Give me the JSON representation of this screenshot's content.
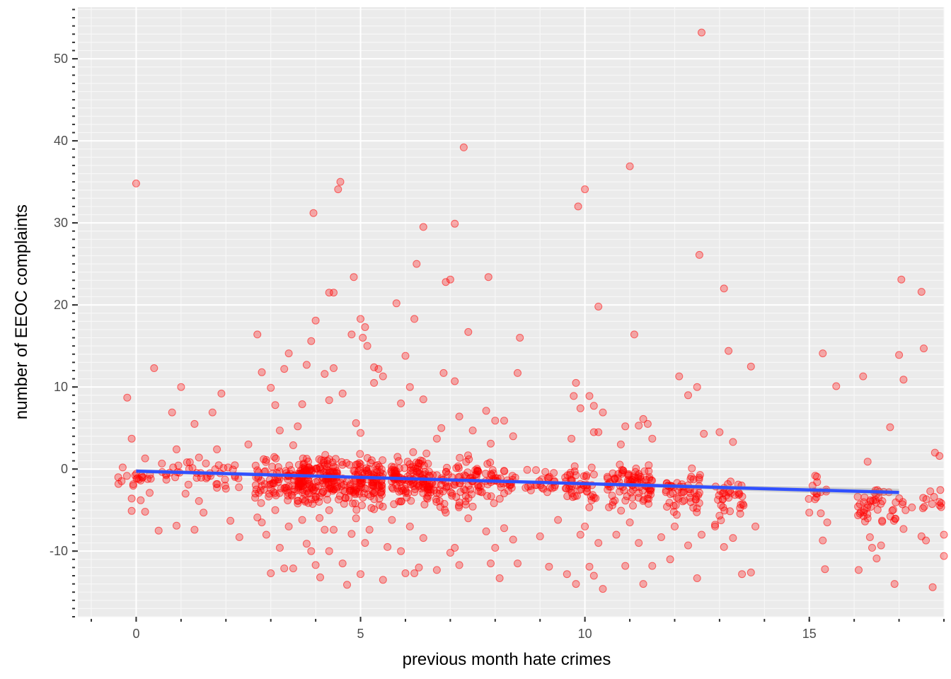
{
  "chart_data": {
    "type": "scatter",
    "xlabel": "previous month hate crimes",
    "ylabel": "number of EEOC complaints",
    "xlim": [
      -1.3,
      18.0
    ],
    "ylim": [
      -18.0,
      56.3
    ],
    "x_ticks": [
      0,
      5,
      10,
      15
    ],
    "x_tick_labels": [
      "0",
      "5",
      "10",
      "15"
    ],
    "y_ticks": [
      -10,
      0,
      10,
      20,
      30,
      40,
      50
    ],
    "y_tick_labels": [
      "-10",
      "0",
      "10",
      "20",
      "30",
      "40",
      "50"
    ],
    "grid": true,
    "point_color": "#ff0000",
    "point_alpha": 0.3,
    "series": [
      {
        "values": [
          {
            "x": -0.2,
            "y": 8.7
          },
          {
            "x": -0.1,
            "y": 3.7
          },
          {
            "x": 0.0,
            "y": 34.8
          },
          {
            "x": 0.2,
            "y": 1.3
          },
          {
            "x": -0.4,
            "y": -1.0
          },
          {
            "x": -0.3,
            "y": 0.2
          },
          {
            "x": -0.1,
            "y": -3.6
          },
          {
            "x": 0.1,
            "y": -1.4
          },
          {
            "x": 0.3,
            "y": -2.9
          },
          {
            "x": 0.4,
            "y": 12.3
          },
          {
            "x": 0.5,
            "y": -7.5
          },
          {
            "x": 0.8,
            "y": 6.9
          },
          {
            "x": 0.9,
            "y": 2.4
          },
          {
            "x": 1.0,
            "y": 10.0
          },
          {
            "x": 1.1,
            "y": -3.0
          },
          {
            "x": 1.3,
            "y": 5.5
          },
          {
            "x": 1.4,
            "y": 1.4
          },
          {
            "x": 1.5,
            "y": -5.3
          },
          {
            "x": 1.7,
            "y": 6.9
          },
          {
            "x": 1.8,
            "y": 2.4
          },
          {
            "x": 1.9,
            "y": 9.2
          },
          {
            "x": 2.1,
            "y": -6.3
          },
          {
            "x": 2.2,
            "y": -0.8
          },
          {
            "x": 2.3,
            "y": -8.3
          },
          {
            "x": 2.5,
            "y": 3.0
          },
          {
            "x": 2.7,
            "y": 16.4
          },
          {
            "x": 2.8,
            "y": 11.8
          },
          {
            "x": 2.9,
            "y": 1.1
          },
          {
            "x": 3.0,
            "y": 9.9
          },
          {
            "x": 3.1,
            "y": 7.8
          },
          {
            "x": 3.2,
            "y": 4.7
          },
          {
            "x": 3.3,
            "y": 12.2
          },
          {
            "x": 3.4,
            "y": 14.1
          },
          {
            "x": 3.5,
            "y": 2.9
          },
          {
            "x": 3.6,
            "y": 5.2
          },
          {
            "x": 3.7,
            "y": 7.9
          },
          {
            "x": 3.8,
            "y": 12.7
          },
          {
            "x": 3.9,
            "y": 15.6
          },
          {
            "x": 3.95,
            "y": 31.2
          },
          {
            "x": 4.0,
            "y": 18.1
          },
          {
            "x": 4.2,
            "y": 11.6
          },
          {
            "x": 4.3,
            "y": 21.5
          },
          {
            "x": 4.4,
            "y": 21.5
          },
          {
            "x": 4.5,
            "y": 34.1
          },
          {
            "x": 4.55,
            "y": 35.0
          },
          {
            "x": 4.3,
            "y": 8.4
          },
          {
            "x": 4.4,
            "y": 12.3
          },
          {
            "x": 4.6,
            "y": 9.2
          },
          {
            "x": 4.8,
            "y": 16.4
          },
          {
            "x": 4.85,
            "y": 23.4
          },
          {
            "x": 5.0,
            "y": 18.3
          },
          {
            "x": 5.1,
            "y": 17.3
          },
          {
            "x": 5.05,
            "y": 16.0
          },
          {
            "x": 5.15,
            "y": 15.0
          },
          {
            "x": 5.3,
            "y": 12.4
          },
          {
            "x": 5.4,
            "y": 12.2
          },
          {
            "x": 5.5,
            "y": 11.3
          },
          {
            "x": 5.3,
            "y": 10.5
          },
          {
            "x": 4.9,
            "y": 5.6
          },
          {
            "x": 5.0,
            "y": 4.4
          },
          {
            "x": 5.8,
            "y": 20.2
          },
          {
            "x": 5.9,
            "y": 8.0
          },
          {
            "x": 6.0,
            "y": 13.8
          },
          {
            "x": 6.1,
            "y": 10.0
          },
          {
            "x": 6.2,
            "y": 18.3
          },
          {
            "x": 6.25,
            "y": 25.0
          },
          {
            "x": 6.4,
            "y": 29.5
          },
          {
            "x": 6.4,
            "y": 8.5
          },
          {
            "x": 6.7,
            "y": 3.7
          },
          {
            "x": 6.8,
            "y": 5.0
          },
          {
            "x": 6.85,
            "y": 11.7
          },
          {
            "x": 6.9,
            "y": 22.8
          },
          {
            "x": 7.0,
            "y": 23.1
          },
          {
            "x": 7.1,
            "y": 29.9
          },
          {
            "x": 7.1,
            "y": 10.7
          },
          {
            "x": 7.2,
            "y": 6.4
          },
          {
            "x": 7.3,
            "y": 39.2
          },
          {
            "x": 7.4,
            "y": 16.7
          },
          {
            "x": 7.5,
            "y": 4.7
          },
          {
            "x": 7.8,
            "y": 7.1
          },
          {
            "x": 7.85,
            "y": 23.4
          },
          {
            "x": 7.9,
            "y": 3.1
          },
          {
            "x": 8.0,
            "y": 5.9
          },
          {
            "x": 8.2,
            "y": 5.9
          },
          {
            "x": 8.4,
            "y": 4.0
          },
          {
            "x": 8.5,
            "y": 11.7
          },
          {
            "x": 8.55,
            "y": 16.0
          },
          {
            "x": 9.7,
            "y": 3.7
          },
          {
            "x": 9.75,
            "y": 8.9
          },
          {
            "x": 9.8,
            "y": 10.5
          },
          {
            "x": 9.85,
            "y": 32.0
          },
          {
            "x": 9.9,
            "y": 7.4
          },
          {
            "x": 10.0,
            "y": 34.1
          },
          {
            "x": 10.1,
            "y": 8.9
          },
          {
            "x": 10.2,
            "y": 7.7
          },
          {
            "x": 10.2,
            "y": 4.5
          },
          {
            "x": 10.3,
            "y": 4.5
          },
          {
            "x": 10.3,
            "y": 19.8
          },
          {
            "x": 10.4,
            "y": 6.9
          },
          {
            "x": 10.8,
            "y": 3.0
          },
          {
            "x": 10.9,
            "y": 5.2
          },
          {
            "x": 11.0,
            "y": 36.9
          },
          {
            "x": 11.1,
            "y": 16.4
          },
          {
            "x": 11.2,
            "y": 5.3
          },
          {
            "x": 11.3,
            "y": 6.1
          },
          {
            "x": 11.4,
            "y": 5.5
          },
          {
            "x": 11.5,
            "y": 3.7
          },
          {
            "x": 12.1,
            "y": 11.3
          },
          {
            "x": 12.3,
            "y": 9.0
          },
          {
            "x": 12.5,
            "y": 10.0
          },
          {
            "x": 12.55,
            "y": 26.1
          },
          {
            "x": 12.6,
            "y": 53.2
          },
          {
            "x": 12.65,
            "y": 4.3
          },
          {
            "x": 13.1,
            "y": 22.0
          },
          {
            "x": 13.2,
            "y": 14.4
          },
          {
            "x": 13.3,
            "y": 3.3
          },
          {
            "x": 13.0,
            "y": 4.5
          },
          {
            "x": 13.7,
            "y": 12.5
          },
          {
            "x": 15.3,
            "y": 14.1
          },
          {
            "x": 15.6,
            "y": 10.1
          },
          {
            "x": 16.2,
            "y": 11.3
          },
          {
            "x": 16.3,
            "y": 0.9
          },
          {
            "x": 16.8,
            "y": 5.1
          },
          {
            "x": 17.0,
            "y": 13.9
          },
          {
            "x": 17.05,
            "y": 23.1
          },
          {
            "x": 17.1,
            "y": 10.9
          },
          {
            "x": 17.5,
            "y": 21.6
          },
          {
            "x": 17.55,
            "y": 14.7
          },
          {
            "x": 17.8,
            "y": 2.0
          },
          {
            "x": 17.9,
            "y": 1.6
          },
          {
            "x": -0.1,
            "y": -5.1
          },
          {
            "x": 0.1,
            "y": -3.8
          },
          {
            "x": 0.2,
            "y": -5.2
          },
          {
            "x": 0.9,
            "y": -6.9
          },
          {
            "x": 1.3,
            "y": -7.4
          },
          {
            "x": 1.4,
            "y": -3.9
          },
          {
            "x": 2.0,
            "y": -2.4
          },
          {
            "x": 2.7,
            "y": -5.9
          },
          {
            "x": 2.8,
            "y": -6.5
          },
          {
            "x": 2.9,
            "y": -8.0
          },
          {
            "x": 3.0,
            "y": -12.7
          },
          {
            "x": 3.1,
            "y": -5.0
          },
          {
            "x": 3.2,
            "y": -9.6
          },
          {
            "x": 3.3,
            "y": -12.1
          },
          {
            "x": 3.4,
            "y": -7.0
          },
          {
            "x": 3.5,
            "y": -12.1
          },
          {
            "x": 3.6,
            "y": -4.2
          },
          {
            "x": 3.7,
            "y": -6.2
          },
          {
            "x": 3.8,
            "y": -9.1
          },
          {
            "x": 3.9,
            "y": -10.0
          },
          {
            "x": 4.0,
            "y": -11.7
          },
          {
            "x": 4.1,
            "y": -13.2
          },
          {
            "x": 4.2,
            "y": -7.4
          },
          {
            "x": 4.3,
            "y": -10.0
          },
          {
            "x": 4.4,
            "y": -7.4
          },
          {
            "x": 4.6,
            "y": -11.5
          },
          {
            "x": 4.7,
            "y": -14.1
          },
          {
            "x": 4.8,
            "y": -7.9
          },
          {
            "x": 4.9,
            "y": -6.0
          },
          {
            "x": 5.0,
            "y": -12.8
          },
          {
            "x": 5.1,
            "y": -9.0
          },
          {
            "x": 5.2,
            "y": -7.4
          },
          {
            "x": 5.3,
            "y": -4.9
          },
          {
            "x": 5.5,
            "y": -13.5
          },
          {
            "x": 5.6,
            "y": -9.5
          },
          {
            "x": 5.7,
            "y": -6.2
          },
          {
            "x": 5.9,
            "y": -10.0
          },
          {
            "x": 6.0,
            "y": -12.7
          },
          {
            "x": 6.1,
            "y": -7.0
          },
          {
            "x": 6.2,
            "y": -12.7
          },
          {
            "x": 6.3,
            "y": -12.0
          },
          {
            "x": 6.4,
            "y": -8.4
          },
          {
            "x": 6.7,
            "y": -12.3
          },
          {
            "x": 6.9,
            "y": -5.3
          },
          {
            "x": 7.0,
            "y": -10.2
          },
          {
            "x": 7.1,
            "y": -9.6
          },
          {
            "x": 7.2,
            "y": -11.7
          },
          {
            "x": 7.4,
            "y": -6.0
          },
          {
            "x": 7.8,
            "y": -7.6
          },
          {
            "x": 7.9,
            "y": -11.5
          },
          {
            "x": 8.0,
            "y": -9.6
          },
          {
            "x": 8.1,
            "y": -13.3
          },
          {
            "x": 8.2,
            "y": -7.2
          },
          {
            "x": 8.4,
            "y": -8.6
          },
          {
            "x": 8.5,
            "y": -11.5
          },
          {
            "x": 9.0,
            "y": -8.2
          },
          {
            "x": 9.2,
            "y": -11.9
          },
          {
            "x": 9.4,
            "y": -6.2
          },
          {
            "x": 9.6,
            "y": -12.8
          },
          {
            "x": 9.8,
            "y": -14.0
          },
          {
            "x": 9.9,
            "y": -8.0
          },
          {
            "x": 10.0,
            "y": -7.0
          },
          {
            "x": 10.1,
            "y": -11.9
          },
          {
            "x": 10.2,
            "y": -13.0
          },
          {
            "x": 10.3,
            "y": -9.0
          },
          {
            "x": 10.4,
            "y": -14.6
          },
          {
            "x": 10.7,
            "y": -8.0
          },
          {
            "x": 10.9,
            "y": -11.8
          },
          {
            "x": 11.0,
            "y": -6.5
          },
          {
            "x": 11.2,
            "y": -9.0
          },
          {
            "x": 11.3,
            "y": -14.0
          },
          {
            "x": 11.5,
            "y": -11.8
          },
          {
            "x": 11.7,
            "y": -8.3
          },
          {
            "x": 11.9,
            "y": -11.0
          },
          {
            "x": 12.0,
            "y": -7.0
          },
          {
            "x": 12.3,
            "y": -9.3
          },
          {
            "x": 12.5,
            "y": -13.3
          },
          {
            "x": 12.6,
            "y": -8.0
          },
          {
            "x": 12.9,
            "y": -7.0
          },
          {
            "x": 13.1,
            "y": -9.5
          },
          {
            "x": 13.3,
            "y": -8.4
          },
          {
            "x": 13.5,
            "y": -12.8
          },
          {
            "x": 13.7,
            "y": -12.6
          },
          {
            "x": 13.8,
            "y": -7.0
          },
          {
            "x": 15.0,
            "y": -5.3
          },
          {
            "x": 15.3,
            "y": -8.7
          },
          {
            "x": 15.35,
            "y": -12.2
          },
          {
            "x": 15.4,
            "y": -6.5
          },
          {
            "x": 16.1,
            "y": -12.3
          },
          {
            "x": 16.3,
            "y": -6.0
          },
          {
            "x": 16.35,
            "y": -8.3
          },
          {
            "x": 16.4,
            "y": -9.6
          },
          {
            "x": 16.5,
            "y": -10.9
          },
          {
            "x": 16.6,
            "y": -9.3
          },
          {
            "x": 16.9,
            "y": -14.0
          },
          {
            "x": 17.1,
            "y": -7.3
          },
          {
            "x": 17.5,
            "y": -8.2
          },
          {
            "x": 17.6,
            "y": -8.7
          },
          {
            "x": 17.75,
            "y": -14.4
          },
          {
            "x": 18.0,
            "y": -8.0
          },
          {
            "x": 18.0,
            "y": -10.6
          },
          {
            "x": 17.9,
            "y": -4.0
          }
        ]
      }
    ],
    "dense_clusters": [
      {
        "center": 0.0,
        "spread": 0.4,
        "n": 16,
        "mean": -1.3,
        "sd": 1.0
      },
      {
        "center": 1.0,
        "spread": 0.45,
        "n": 20,
        "mean": -0.5,
        "sd": 1.2
      },
      {
        "center": 2.0,
        "spread": 0.45,
        "n": 20,
        "mean": -0.8,
        "sd": 1.2
      },
      {
        "center": 3.2,
        "spread": 0.55,
        "n": 90,
        "mean": -1.5,
        "sd": 1.8
      },
      {
        "center": 4.05,
        "spread": 0.45,
        "n": 150,
        "mean": -1.2,
        "sd": 2.2
      },
      {
        "center": 5.0,
        "spread": 0.5,
        "n": 130,
        "mean": -1.8,
        "sd": 2.2
      },
      {
        "center": 6.1,
        "spread": 0.45,
        "n": 120,
        "mean": -1.2,
        "sd": 2.0
      },
      {
        "center": 7.0,
        "spread": 0.5,
        "n": 80,
        "mean": -1.7,
        "sd": 1.8
      },
      {
        "center": 8.0,
        "spread": 0.45,
        "n": 55,
        "mean": -1.5,
        "sd": 1.6
      },
      {
        "center": 9.0,
        "spread": 0.35,
        "n": 25,
        "mean": -1.7,
        "sd": 1.2
      },
      {
        "center": 9.9,
        "spread": 0.35,
        "n": 45,
        "mean": -2.0,
        "sd": 1.8
      },
      {
        "center": 11.0,
        "spread": 0.5,
        "n": 90,
        "mean": -1.8,
        "sd": 1.8
      },
      {
        "center": 12.2,
        "spread": 0.4,
        "n": 55,
        "mean": -2.8,
        "sd": 1.8
      },
      {
        "center": 13.2,
        "spread": 0.35,
        "n": 35,
        "mean": -3.5,
        "sd": 1.8
      },
      {
        "center": 15.2,
        "spread": 0.25,
        "n": 14,
        "mean": -2.0,
        "sd": 1.5
      },
      {
        "center": 16.6,
        "spread": 0.55,
        "n": 45,
        "mean": -4.2,
        "sd": 1.5
      },
      {
        "center": 17.6,
        "spread": 0.35,
        "n": 12,
        "mean": -3.8,
        "sd": 1.2
      }
    ],
    "trend_line": {
      "x": [
        0,
        17.0
      ],
      "y": [
        -0.25,
        -2.85
      ],
      "color": "#3050ff",
      "ribbon_color": "#999999"
    }
  }
}
